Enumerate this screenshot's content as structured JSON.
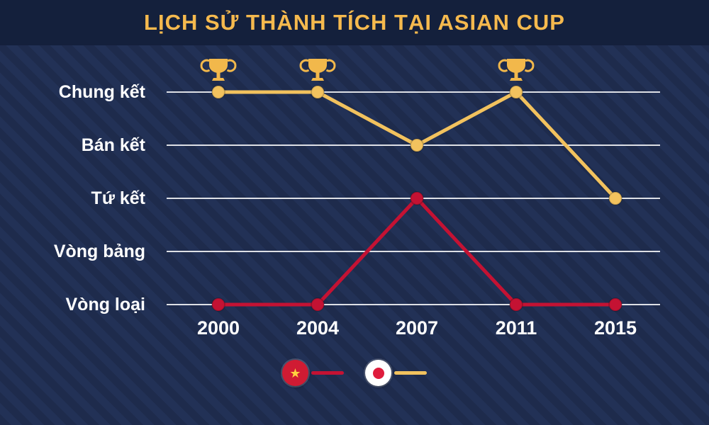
{
  "header": {
    "title": "LỊCH SỬ THÀNH TÍCH TẠI ASIAN CUP"
  },
  "colors": {
    "background": "#223156",
    "header_bg": "#14203c",
    "title_gold": "#f5b94e",
    "red_line": "#c41233",
    "yellow_line": "#f2c25e",
    "trophy_gold": "#f2b84b",
    "grid": "#ffffff",
    "label_text": "#ffffff"
  },
  "chart_data": {
    "type": "line",
    "title": "LỊCH SỬ THÀNH TÍCH TẠI ASIAN CUP",
    "categories": [
      "2000",
      "2004",
      "2007",
      "2011",
      "2015"
    ],
    "y_labels": [
      "Chung kết",
      "Bán kết",
      "Tứ kết",
      "Vòng bảng",
      "Vòng loại"
    ],
    "grid": "horizontal",
    "legend_position": "bottom",
    "series": [
      {
        "flag": "vietnam",
        "color": "#c41233",
        "values": [
          "Vòng loại",
          "Vòng loại",
          "Tứ kết",
          "Vòng loại",
          "Vòng loại"
        ]
      },
      {
        "flag": "japan",
        "color": "#f2c25e",
        "values": [
          "Chung kết",
          "Chung kết",
          "Bán kết",
          "Chung kết",
          "Tứ kết"
        ]
      }
    ],
    "trophies": {
      "series": "japan",
      "categories": [
        "2000",
        "2004",
        "2011"
      ]
    }
  },
  "legend": {
    "items": [
      {
        "icon": "vietnam-flag-icon",
        "line_color": "#c41233"
      },
      {
        "icon": "japan-flag-icon",
        "line_color": "#f2c25e"
      }
    ]
  }
}
